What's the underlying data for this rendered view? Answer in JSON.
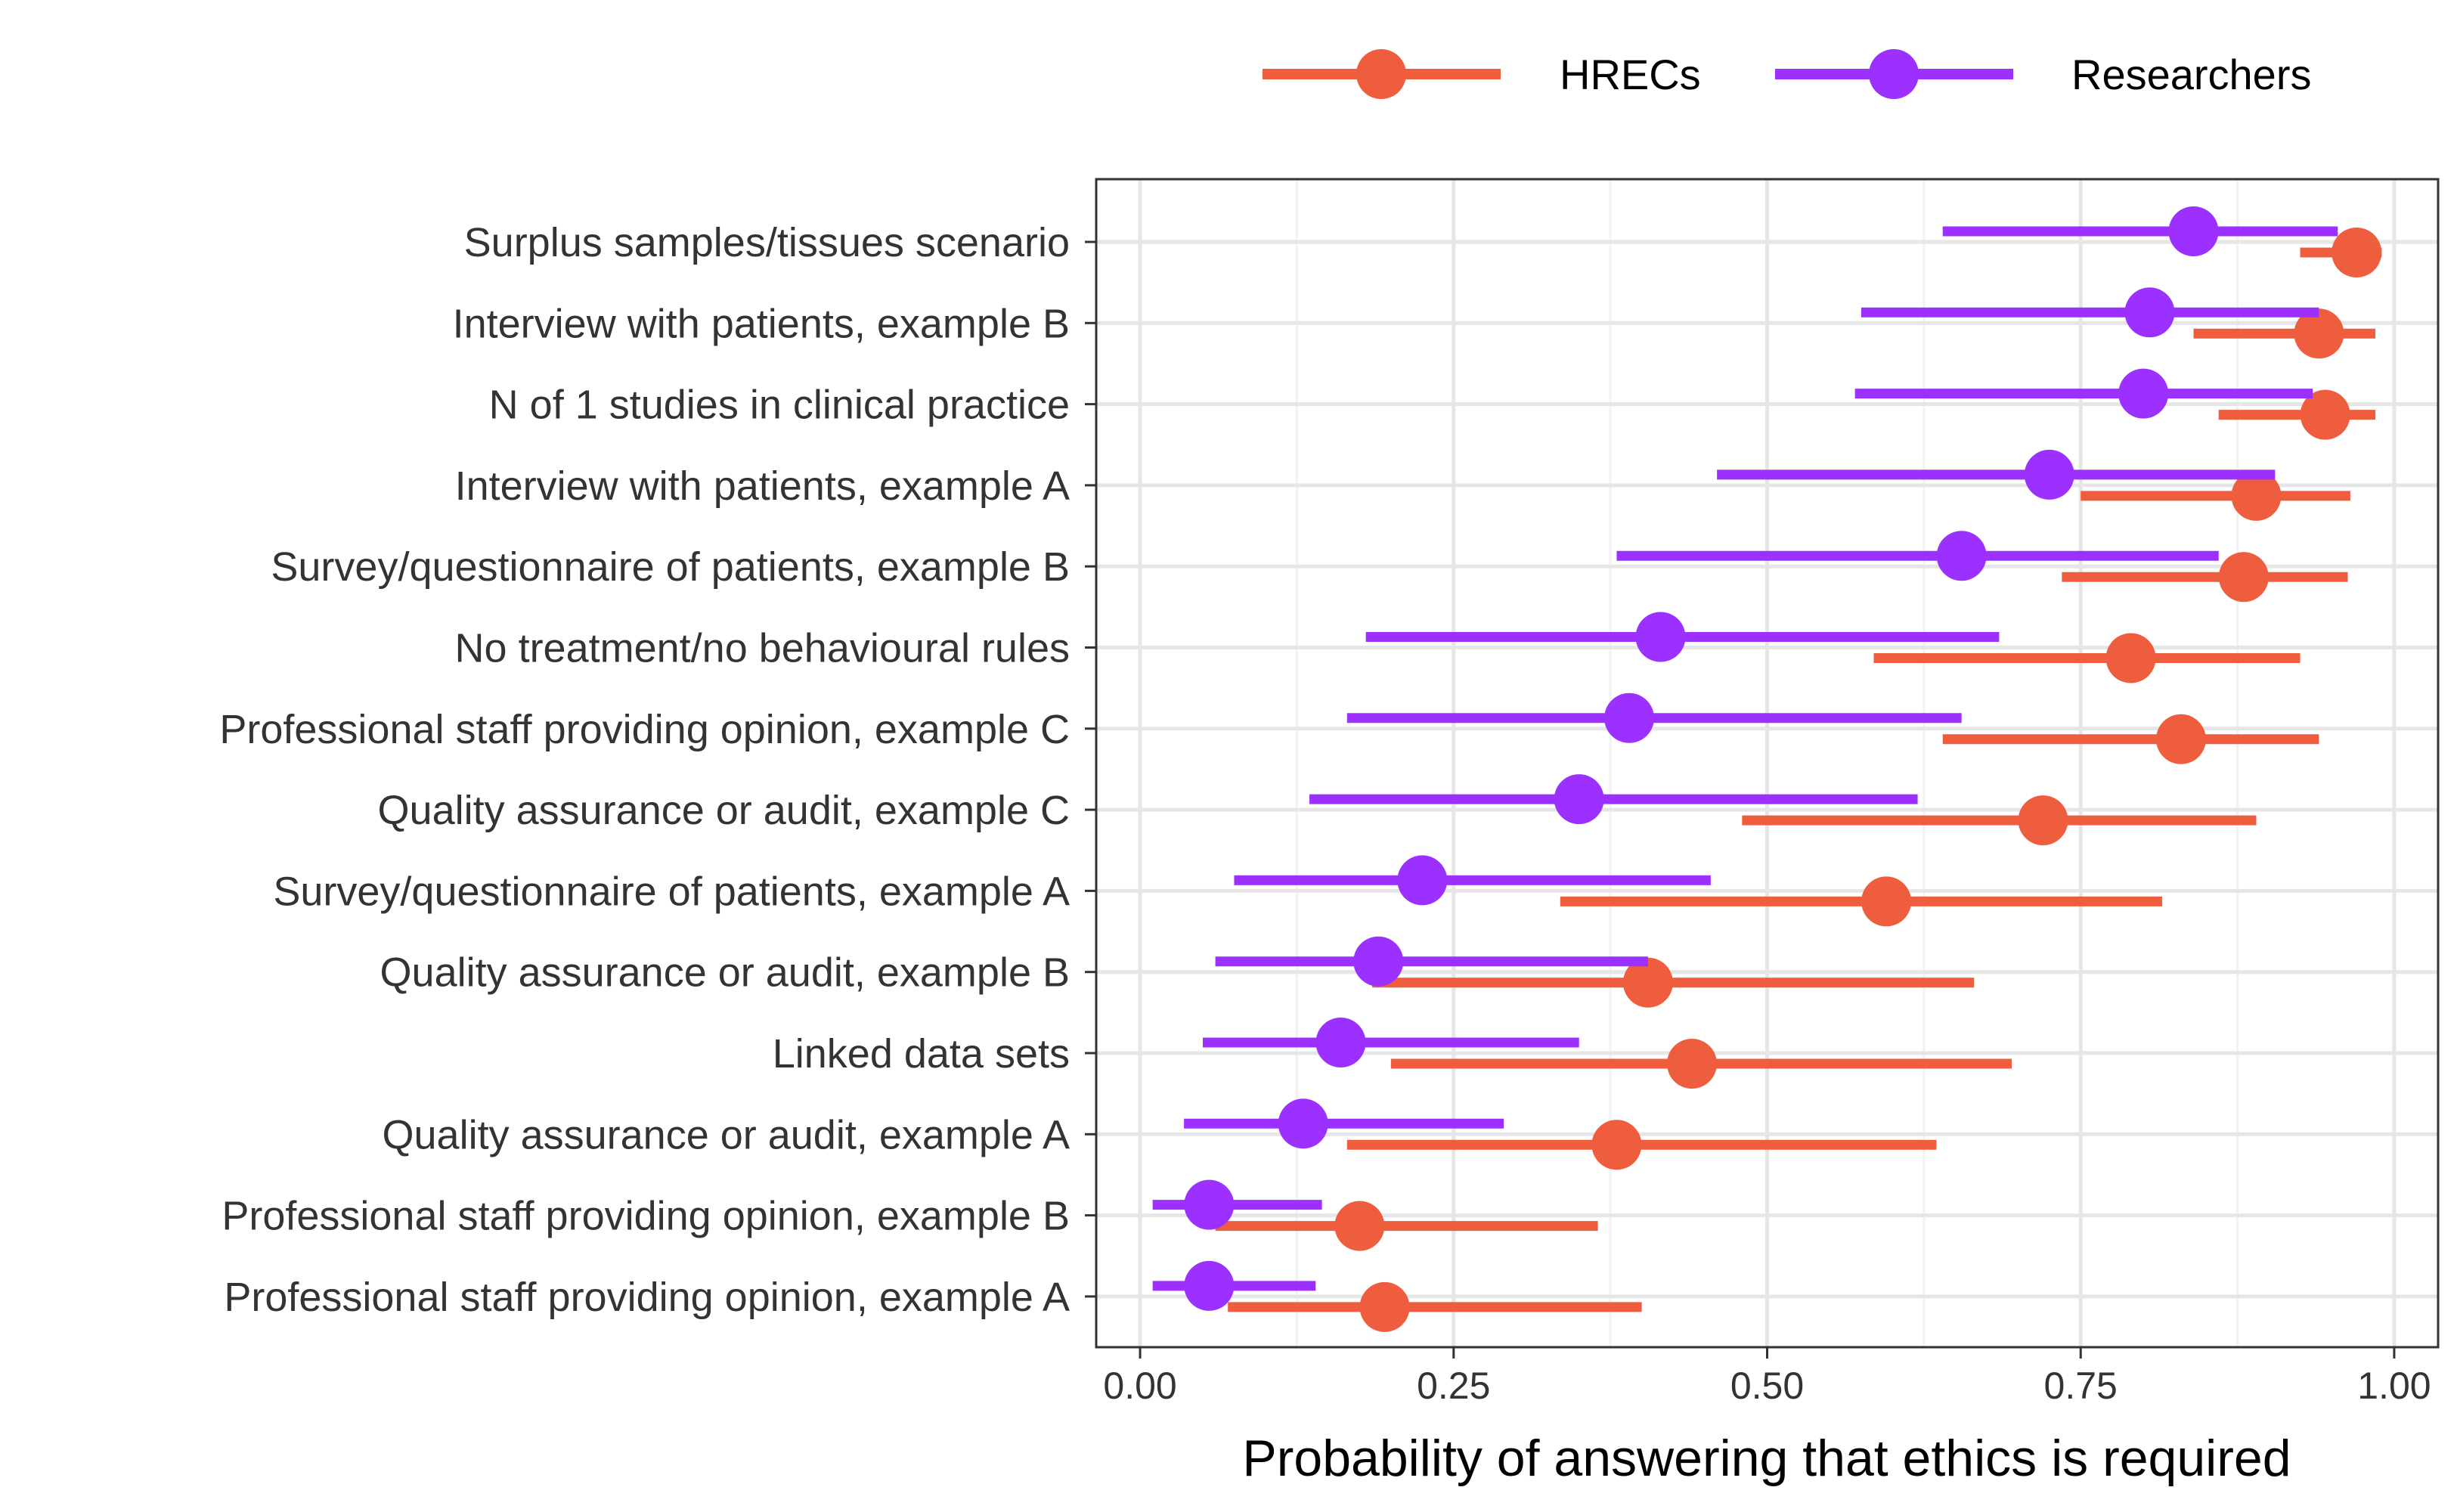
{
  "chart_data": {
    "type": "dot-interval",
    "xlabel": "Probability of answering that ethics is required",
    "xlim": [
      -0.035,
      1.035
    ],
    "x_ticks": [
      0,
      0.25,
      0.5,
      0.75,
      1
    ],
    "x_tick_labels": [
      "0.00",
      "0.25",
      "0.50",
      "0.75",
      "1.00"
    ],
    "grid": true,
    "legend_position": "top-right",
    "categories": [
      "Surplus samples/tissues scenario",
      "Interview with patients, example B",
      "N of 1 studies in clinical practice",
      "Interview with patients, example A",
      "Survey/questionnaire of patients, example B",
      "No treatment/no behavioural rules",
      "Professional staff providing opinion, example C",
      "Quality assurance or audit, example C",
      "Survey/questionnaire of patients, example A",
      "Quality assurance or audit, example B",
      "Linked data sets",
      "Quality assurance or audit, example A",
      "Professional staff providing opinion, example B",
      "Professional staff providing opinion, example A"
    ],
    "series": [
      {
        "name": "HRECs",
        "color": "#ef5d3f",
        "estimate": [
          0.97,
          0.94,
          0.945,
          0.89,
          0.88,
          0.79,
          0.83,
          0.72,
          0.595,
          0.405,
          0.44,
          0.38,
          0.175,
          0.195
        ],
        "lower": [
          0.925,
          0.84,
          0.86,
          0.75,
          0.735,
          0.585,
          0.64,
          0.48,
          0.335,
          0.185,
          0.2,
          0.165,
          0.06,
          0.07
        ],
        "upper": [
          0.99,
          0.985,
          0.985,
          0.965,
          0.963,
          0.925,
          0.94,
          0.89,
          0.815,
          0.665,
          0.695,
          0.635,
          0.365,
          0.4
        ]
      },
      {
        "name": "Researchers",
        "color": "#9b30ff",
        "estimate": [
          0.84,
          0.805,
          0.8,
          0.725,
          0.655,
          0.415,
          0.39,
          0.35,
          0.225,
          0.19,
          0.16,
          0.13,
          0.055,
          0.055
        ],
        "lower": [
          0.64,
          0.575,
          0.57,
          0.46,
          0.38,
          0.18,
          0.165,
          0.135,
          0.075,
          0.06,
          0.05,
          0.035,
          0.01,
          0.01
        ],
        "upper": [
          0.955,
          0.94,
          0.935,
          0.905,
          0.86,
          0.685,
          0.655,
          0.62,
          0.455,
          0.405,
          0.35,
          0.29,
          0.145,
          0.14
        ]
      }
    ]
  }
}
